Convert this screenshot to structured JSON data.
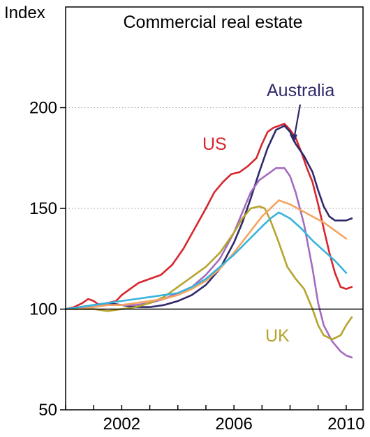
{
  "chart_data": {
    "type": "line",
    "title": "Commercial real estate",
    "ylabel": "Index",
    "xlabel": "",
    "xlim": [
      2000.0,
      2010.6
    ],
    "ylim": [
      50,
      250
    ],
    "y_ticks": [
      50,
      100,
      150,
      200
    ],
    "x_ticks": [
      2002,
      2006,
      2010
    ],
    "x_minor_ticks": [
      2000,
      2001,
      2002,
      2003,
      2004,
      2005,
      2006,
      2007,
      2008,
      2009,
      2010
    ],
    "grid": "dotted horizontal at 150 and 200",
    "baseline": 100,
    "labels": {
      "us": "US",
      "australia": "Australia",
      "uk": "UK"
    },
    "series": [
      {
        "name": "US",
        "color": "#d8262d",
        "x": [
          2000.0,
          2000.3,
          2000.6,
          2000.8,
          2001.0,
          2001.2,
          2001.5,
          2001.8,
          2002.0,
          2002.3,
          2002.6,
          2003.0,
          2003.4,
          2003.8,
          2004.2,
          2004.6,
          2005.0,
          2005.3,
          2005.6,
          2005.9,
          2006.2,
          2006.5,
          2006.8,
          2007.0,
          2007.2,
          2007.4,
          2007.6,
          2007.8,
          2008.0,
          2008.2,
          2008.4,
          2008.6,
          2008.8,
          2009.0,
          2009.2,
          2009.4,
          2009.6,
          2009.8,
          2010.0,
          2010.2
        ],
        "y": [
          100,
          101,
          103,
          105,
          104,
          102,
          103,
          104,
          107,
          110,
          113,
          115,
          117,
          122,
          130,
          140,
          150,
          158,
          163,
          167,
          168,
          171,
          175,
          182,
          188,
          190,
          191,
          192,
          189,
          185,
          178,
          170,
          163,
          152,
          140,
          128,
          118,
          111,
          110,
          111
        ]
      },
      {
        "name": "Australia",
        "color": "#2e2a6b",
        "x": [
          2000.0,
          2000.5,
          2001.0,
          2001.5,
          2002.0,
          2002.5,
          2003.0,
          2003.5,
          2004.0,
          2004.5,
          2005.0,
          2005.5,
          2006.0,
          2006.3,
          2006.6,
          2006.9,
          2007.2,
          2007.5,
          2007.8,
          2008.0,
          2008.2,
          2008.5,
          2008.8,
          2009.0,
          2009.2,
          2009.4,
          2009.6,
          2009.8,
          2010.0,
          2010.2
        ],
        "y": [
          100,
          101,
          102,
          103,
          102,
          101,
          101,
          102,
          104,
          107,
          112,
          120,
          133,
          143,
          155,
          168,
          180,
          189,
          191,
          188,
          182,
          176,
          168,
          159,
          151,
          146,
          144,
          144,
          144,
          145
        ]
      },
      {
        "name": "",
        "color": "#a56bc0",
        "x": [
          2000.0,
          2000.5,
          2001.0,
          2001.5,
          2002.0,
          2002.5,
          2003.0,
          2003.5,
          2004.0,
          2004.5,
          2005.0,
          2005.5,
          2006.0,
          2006.3,
          2006.6,
          2006.9,
          2007.2,
          2007.5,
          2007.8,
          2008.0,
          2008.2,
          2008.5,
          2008.8,
          2009.0,
          2009.2,
          2009.5,
          2009.8,
          2010.0,
          2010.2
        ],
        "y": [
          100,
          101,
          101,
          102,
          102,
          102,
          103,
          105,
          108,
          111,
          117,
          125,
          138,
          148,
          158,
          164,
          167,
          170,
          170,
          166,
          158,
          142,
          120,
          103,
          92,
          84,
          79,
          77,
          76
        ]
      },
      {
        "name": "UK",
        "color": "#b5a42e",
        "x": [
          2000.0,
          2000.5,
          2001.0,
          2001.5,
          2002.0,
          2002.5,
          2003.0,
          2003.5,
          2004.0,
          2004.5,
          2005.0,
          2005.5,
          2006.0,
          2006.3,
          2006.6,
          2006.9,
          2007.1,
          2007.3,
          2007.6,
          2007.9,
          2008.2,
          2008.5,
          2008.8,
          2009.0,
          2009.2,
          2009.5,
          2009.8,
          2010.0,
          2010.2
        ],
        "y": [
          100,
          100,
          100,
          99,
          100,
          101,
          103,
          106,
          111,
          116,
          121,
          128,
          138,
          145,
          150,
          151,
          150,
          144,
          133,
          121,
          115,
          110,
          100,
          92,
          87,
          85,
          87,
          92,
          96
        ]
      },
      {
        "name": "",
        "color": "#f5a462",
        "x": [
          2000.0,
          2000.5,
          2001.0,
          2001.5,
          2002.0,
          2002.5,
          2003.0,
          2003.5,
          2004.0,
          2004.5,
          2005.0,
          2005.5,
          2006.0,
          2006.5,
          2007.0,
          2007.3,
          2007.6,
          2008.0,
          2008.4,
          2008.8,
          2009.2,
          2009.6,
          2010.0
        ],
        "y": [
          100,
          100,
          101,
          102,
          102,
          103,
          104,
          105,
          107,
          110,
          114,
          120,
          128,
          137,
          146,
          150,
          154,
          152,
          149,
          146,
          143,
          139,
          135
        ]
      },
      {
        "name": "",
        "color": "#37b4de",
        "x": [
          2000.0,
          2000.5,
          2001.0,
          2001.5,
          2002.0,
          2002.5,
          2003.0,
          2003.5,
          2004.0,
          2004.5,
          2005.0,
          2005.5,
          2006.0,
          2006.5,
          2007.0,
          2007.3,
          2007.6,
          2008.0,
          2008.4,
          2008.8,
          2009.2,
          2009.6,
          2010.0
        ],
        "y": [
          100,
          101,
          102,
          103,
          104,
          105,
          106,
          107,
          108,
          111,
          115,
          121,
          127,
          134,
          141,
          145,
          148,
          145,
          140,
          134,
          129,
          124,
          118
        ]
      }
    ]
  }
}
